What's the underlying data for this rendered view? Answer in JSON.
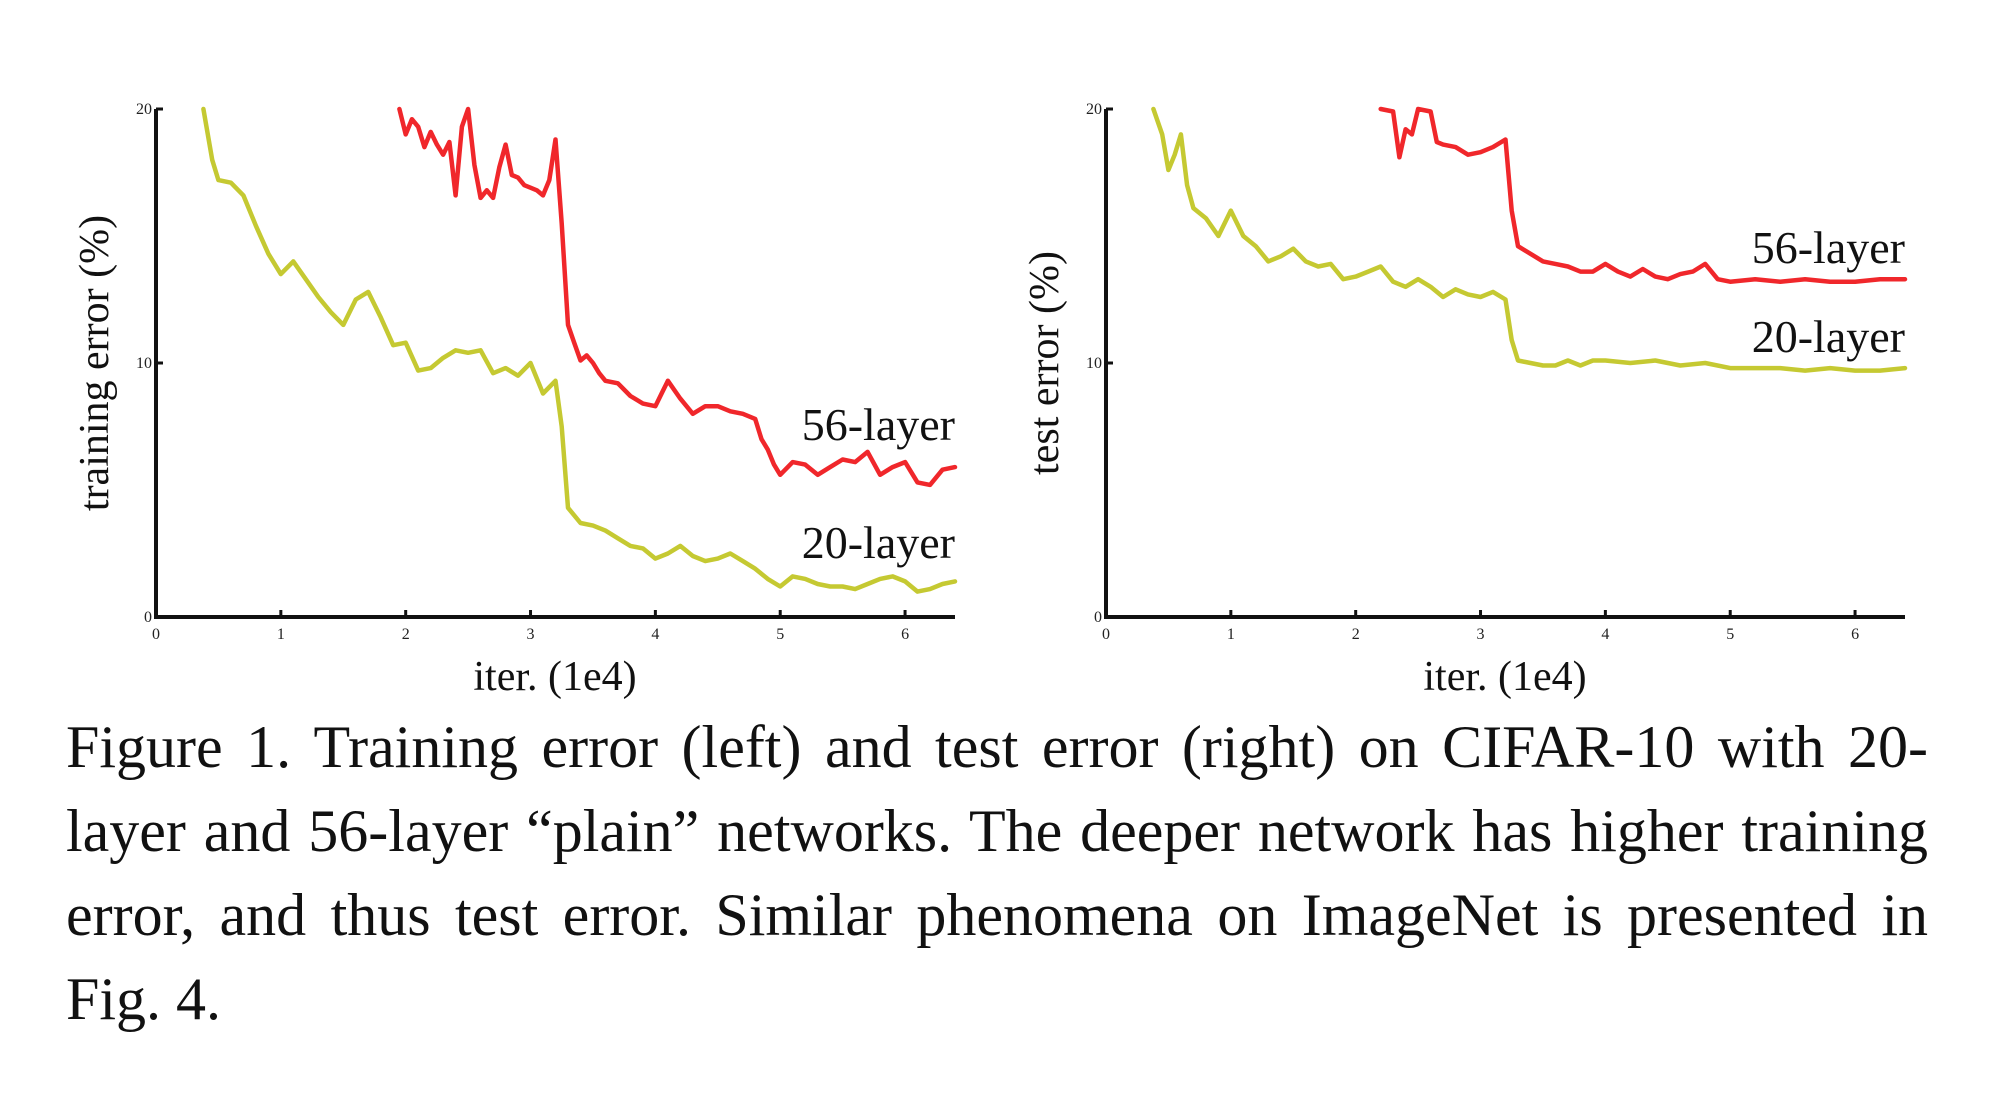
{
  "caption": "Figure 1. Training error (left) and test error (right) on CIFAR-10 with 20-layer and 56-layer “plain” networks. The deeper network has higher training error, and thus test error. Similar phenomena on ImageNet is presented in Fig. 4.",
  "colors": {
    "layer56": "#f0272b",
    "layer20": "#c5c932",
    "axis": "#111111"
  },
  "chart_data": [
    {
      "type": "line",
      "title": "",
      "xlabel": "iter. (1e4)",
      "ylabel": "training error (%)",
      "xlim": [
        0,
        6.4
      ],
      "ylim": [
        0,
        20
      ],
      "xticks": [
        "0",
        "1",
        "2",
        "3",
        "4",
        "5",
        "6"
      ],
      "yticks": [
        "0",
        "10",
        "20"
      ],
      "grid": false,
      "series": [
        {
          "name": "56-layer",
          "color": "#f0272b",
          "points": [
            [
              1.95,
              20.0
            ],
            [
              2.0,
              19.0
            ],
            [
              2.05,
              19.6
            ],
            [
              2.1,
              19.3
            ],
            [
              2.15,
              18.5
            ],
            [
              2.2,
              19.1
            ],
            [
              2.25,
              18.6
            ],
            [
              2.3,
              18.2
            ],
            [
              2.35,
              18.7
            ],
            [
              2.4,
              16.6
            ],
            [
              2.45,
              19.3
            ],
            [
              2.5,
              20.0
            ],
            [
              2.55,
              17.8
            ],
            [
              2.6,
              16.5
            ],
            [
              2.65,
              16.8
            ],
            [
              2.7,
              16.5
            ],
            [
              2.75,
              17.7
            ],
            [
              2.8,
              18.6
            ],
            [
              2.85,
              17.4
            ],
            [
              2.9,
              17.3
            ],
            [
              2.95,
              17.0
            ],
            [
              3.0,
              16.9
            ],
            [
              3.05,
              16.8
            ],
            [
              3.1,
              16.6
            ],
            [
              3.15,
              17.2
            ],
            [
              3.2,
              18.8
            ],
            [
              3.25,
              15.5
            ],
            [
              3.3,
              11.5
            ],
            [
              3.35,
              10.8
            ],
            [
              3.4,
              10.1
            ],
            [
              3.45,
              10.3
            ],
            [
              3.5,
              10.0
            ],
            [
              3.55,
              9.6
            ],
            [
              3.6,
              9.3
            ],
            [
              3.7,
              9.2
            ],
            [
              3.8,
              8.7
            ],
            [
              3.9,
              8.4
            ],
            [
              4.0,
              8.3
            ],
            [
              4.05,
              8.8
            ],
            [
              4.1,
              9.3
            ],
            [
              4.2,
              8.6
            ],
            [
              4.3,
              8.0
            ],
            [
              4.4,
              8.3
            ],
            [
              4.5,
              8.3
            ],
            [
              4.6,
              8.1
            ],
            [
              4.7,
              8.0
            ],
            [
              4.8,
              7.8
            ],
            [
              4.85,
              7.0
            ],
            [
              4.9,
              6.6
            ],
            [
              4.95,
              6.0
            ],
            [
              5.0,
              5.6
            ],
            [
              5.1,
              6.1
            ],
            [
              5.2,
              6.0
            ],
            [
              5.3,
              5.6
            ],
            [
              5.4,
              5.9
            ],
            [
              5.5,
              6.2
            ],
            [
              5.6,
              6.1
            ],
            [
              5.7,
              6.5
            ],
            [
              5.8,
              5.6
            ],
            [
              5.9,
              5.9
            ],
            [
              6.0,
              6.1
            ],
            [
              6.1,
              5.3
            ],
            [
              6.2,
              5.2
            ],
            [
              6.3,
              5.8
            ],
            [
              6.4,
              5.9
            ]
          ]
        },
        {
          "name": "20-layer",
          "color": "#c5c932",
          "points": [
            [
              0.38,
              20.0
            ],
            [
              0.45,
              18.0
            ],
            [
              0.5,
              17.2
            ],
            [
              0.6,
              17.1
            ],
            [
              0.7,
              16.6
            ],
            [
              0.8,
              15.4
            ],
            [
              0.9,
              14.3
            ],
            [
              1.0,
              13.5
            ],
            [
              1.1,
              14.0
            ],
            [
              1.2,
              13.3
            ],
            [
              1.3,
              12.6
            ],
            [
              1.4,
              12.0
            ],
            [
              1.5,
              11.5
            ],
            [
              1.6,
              12.5
            ],
            [
              1.7,
              12.8
            ],
            [
              1.8,
              11.8
            ],
            [
              1.9,
              10.7
            ],
            [
              2.0,
              10.8
            ],
            [
              2.1,
              9.7
            ],
            [
              2.2,
              9.8
            ],
            [
              2.3,
              10.2
            ],
            [
              2.4,
              10.5
            ],
            [
              2.5,
              10.4
            ],
            [
              2.6,
              10.5
            ],
            [
              2.7,
              9.6
            ],
            [
              2.8,
              9.8
            ],
            [
              2.9,
              9.5
            ],
            [
              3.0,
              10.0
            ],
            [
              3.1,
              8.8
            ],
            [
              3.2,
              9.3
            ],
            [
              3.25,
              7.5
            ],
            [
              3.3,
              4.3
            ],
            [
              3.4,
              3.7
            ],
            [
              3.5,
              3.6
            ],
            [
              3.6,
              3.4
            ],
            [
              3.7,
              3.1
            ],
            [
              3.8,
              2.8
            ],
            [
              3.9,
              2.7
            ],
            [
              4.0,
              2.3
            ],
            [
              4.1,
              2.5
            ],
            [
              4.2,
              2.8
            ],
            [
              4.3,
              2.4
            ],
            [
              4.4,
              2.2
            ],
            [
              4.5,
              2.3
            ],
            [
              4.6,
              2.5
            ],
            [
              4.7,
              2.2
            ],
            [
              4.8,
              1.9
            ],
            [
              4.9,
              1.5
            ],
            [
              5.0,
              1.2
            ],
            [
              5.1,
              1.6
            ],
            [
              5.2,
              1.5
            ],
            [
              5.3,
              1.3
            ],
            [
              5.4,
              1.2
            ],
            [
              5.5,
              1.2
            ],
            [
              5.6,
              1.1
            ],
            [
              5.7,
              1.3
            ],
            [
              5.8,
              1.5
            ],
            [
              5.9,
              1.6
            ],
            [
              6.0,
              1.4
            ],
            [
              6.1,
              1.0
            ],
            [
              6.2,
              1.1
            ],
            [
              6.3,
              1.3
            ],
            [
              6.4,
              1.4
            ]
          ]
        }
      ]
    },
    {
      "type": "line",
      "title": "",
      "xlabel": "iter. (1e4)",
      "ylabel": "test error (%)",
      "xlim": [
        0,
        6.4
      ],
      "ylim": [
        0,
        20
      ],
      "xticks": [
        "0",
        "1",
        "2",
        "3",
        "4",
        "5",
        "6"
      ],
      "yticks": [
        "0",
        "10",
        "20"
      ],
      "grid": false,
      "series": [
        {
          "name": "56-layer",
          "color": "#f0272b",
          "points": [
            [
              2.2,
              20.0
            ],
            [
              2.3,
              19.9
            ],
            [
              2.35,
              18.1
            ],
            [
              2.4,
              19.2
            ],
            [
              2.45,
              19.0
            ],
            [
              2.5,
              20.0
            ],
            [
              2.6,
              19.9
            ],
            [
              2.65,
              18.7
            ],
            [
              2.7,
              18.6
            ],
            [
              2.8,
              18.5
            ],
            [
              2.9,
              18.2
            ],
            [
              3.0,
              18.3
            ],
            [
              3.1,
              18.5
            ],
            [
              3.2,
              18.8
            ],
            [
              3.25,
              16.0
            ],
            [
              3.3,
              14.6
            ],
            [
              3.4,
              14.3
            ],
            [
              3.5,
              14.0
            ],
            [
              3.6,
              13.9
            ],
            [
              3.7,
              13.8
            ],
            [
              3.8,
              13.6
            ],
            [
              3.9,
              13.6
            ],
            [
              4.0,
              13.9
            ],
            [
              4.1,
              13.6
            ],
            [
              4.2,
              13.4
            ],
            [
              4.3,
              13.7
            ],
            [
              4.4,
              13.4
            ],
            [
              4.5,
              13.3
            ],
            [
              4.6,
              13.5
            ],
            [
              4.7,
              13.6
            ],
            [
              4.8,
              13.9
            ],
            [
              4.9,
              13.3
            ],
            [
              5.0,
              13.2
            ],
            [
              5.2,
              13.3
            ],
            [
              5.4,
              13.2
            ],
            [
              5.6,
              13.3
            ],
            [
              5.8,
              13.2
            ],
            [
              6.0,
              13.2
            ],
            [
              6.2,
              13.3
            ],
            [
              6.4,
              13.3
            ]
          ]
        },
        {
          "name": "20-layer",
          "color": "#c5c932",
          "points": [
            [
              0.38,
              20.0
            ],
            [
              0.45,
              19.0
            ],
            [
              0.5,
              17.6
            ],
            [
              0.55,
              18.2
            ],
            [
              0.6,
              19.0
            ],
            [
              0.65,
              17.0
            ],
            [
              0.7,
              16.1
            ],
            [
              0.8,
              15.7
            ],
            [
              0.9,
              15.0
            ],
            [
              1.0,
              16.0
            ],
            [
              1.1,
              15.0
            ],
            [
              1.2,
              14.6
            ],
            [
              1.3,
              14.0
            ],
            [
              1.4,
              14.2
            ],
            [
              1.5,
              14.5
            ],
            [
              1.6,
              14.0
            ],
            [
              1.7,
              13.8
            ],
            [
              1.8,
              13.9
            ],
            [
              1.9,
              13.3
            ],
            [
              2.0,
              13.4
            ],
            [
              2.1,
              13.6
            ],
            [
              2.2,
              13.8
            ],
            [
              2.3,
              13.2
            ],
            [
              2.4,
              13.0
            ],
            [
              2.5,
              13.3
            ],
            [
              2.6,
              13.0
            ],
            [
              2.7,
              12.6
            ],
            [
              2.8,
              12.9
            ],
            [
              2.9,
              12.7
            ],
            [
              3.0,
              12.6
            ],
            [
              3.1,
              12.8
            ],
            [
              3.2,
              12.5
            ],
            [
              3.25,
              10.9
            ],
            [
              3.3,
              10.1
            ],
            [
              3.4,
              10.0
            ],
            [
              3.5,
              9.9
            ],
            [
              3.6,
              9.9
            ],
            [
              3.7,
              10.1
            ],
            [
              3.8,
              9.9
            ],
            [
              3.9,
              10.1
            ],
            [
              4.0,
              10.1
            ],
            [
              4.2,
              10.0
            ],
            [
              4.4,
              10.1
            ],
            [
              4.6,
              9.9
            ],
            [
              4.8,
              10.0
            ],
            [
              5.0,
              9.8
            ],
            [
              5.2,
              9.8
            ],
            [
              5.4,
              9.8
            ],
            [
              5.6,
              9.7
            ],
            [
              5.8,
              9.8
            ],
            [
              6.0,
              9.7
            ],
            [
              6.2,
              9.7
            ],
            [
              6.4,
              9.8
            ]
          ]
        }
      ]
    }
  ]
}
